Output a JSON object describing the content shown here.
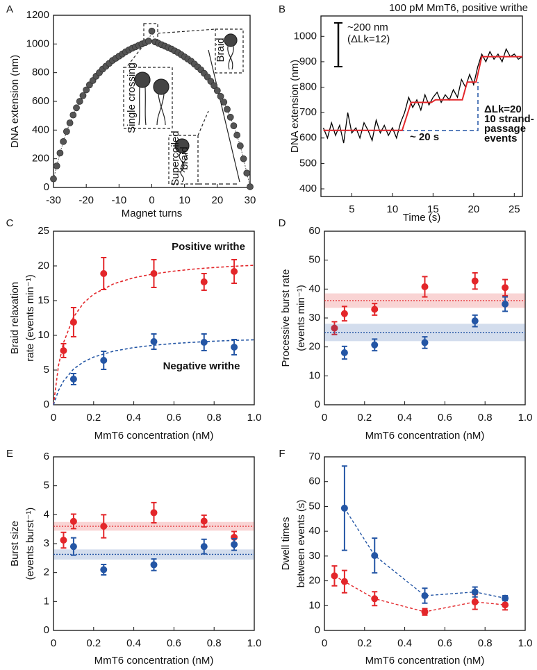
{
  "chart_data": [
    {
      "panel": "A",
      "type": "scatter",
      "color": "#555555",
      "xlabel": "Magnet turns",
      "ylabel": "DNA extension (nm)",
      "x": [
        -30,
        -29,
        -28,
        -27,
        -26,
        -25,
        -24,
        -23,
        -22,
        -21,
        -20,
        -19,
        -18,
        -17,
        -16,
        -15,
        -14,
        -13,
        -12,
        -11,
        -10,
        -9,
        -8,
        -7,
        -6,
        -5,
        -4,
        -3,
        -2,
        -1,
        0,
        1,
        2,
        3,
        4,
        5,
        6,
        7,
        8,
        9,
        10,
        11,
        12,
        13,
        14,
        15,
        16,
        17,
        18,
        19,
        20,
        21,
        22,
        23,
        24,
        25,
        26,
        27,
        28,
        29,
        30
      ],
      "values": [
        60,
        150,
        240,
        320,
        390,
        450,
        505,
        555,
        600,
        640,
        680,
        715,
        745,
        775,
        800,
        825,
        845,
        865,
        885,
        900,
        915,
        930,
        945,
        958,
        970,
        980,
        990,
        1000,
        1010,
        1020,
        1090,
        1015,
        1005,
        995,
        985,
        975,
        965,
        952,
        940,
        925,
        910,
        895,
        880,
        860,
        840,
        820,
        795,
        770,
        740,
        710,
        675,
        635,
        595,
        545,
        490,
        430,
        365,
        290,
        200,
        100,
        5
      ],
      "xlim": [
        -30,
        30
      ],
      "xticks": [
        -30,
        -20,
        -10,
        0,
        10,
        20,
        30
      ],
      "ylim": [
        0,
        1200
      ],
      "yticks": [
        0,
        200,
        400,
        600,
        800,
        1000,
        1200
      ],
      "annotations": [
        "Braid",
        "Single crossing",
        "Supercoiled",
        "braid"
      ]
    },
    {
      "panel": "B",
      "type": "line",
      "xlabel": "Time (s)",
      "ylabel": "DNA extension (nm)",
      "series": [
        {
          "color": "#000000",
          "x": [
            1.5,
            2,
            2.5,
            3,
            3.5,
            4,
            4.5,
            5,
            5.5,
            6,
            6.5,
            7,
            7.5,
            8,
            8.5,
            9,
            9.5,
            10,
            10.5,
            11,
            11.5,
            12,
            12.5,
            13,
            13.5,
            14,
            14.5,
            15,
            15.5,
            16,
            16.5,
            17,
            17.5,
            18,
            18.5,
            19,
            19.5,
            20,
            20.5,
            21,
            21.5,
            22,
            22.5,
            23,
            23.5,
            24,
            24.5,
            25,
            25.5,
            26
          ],
          "values": [
            640,
            600,
            660,
            610,
            650,
            580,
            700,
            620,
            640,
            600,
            660,
            630,
            590,
            670,
            620,
            650,
            610,
            640,
            600,
            660,
            700,
            760,
            720,
            750,
            710,
            770,
            730,
            760,
            780,
            740,
            770,
            750,
            790,
            760,
            830,
            800,
            850,
            810,
            880,
            930,
            900,
            940,
            910,
            930,
            900,
            950,
            920,
            930,
            910,
            920
          ]
        },
        {
          "color": "#e3262a",
          "x": [
            1.5,
            11.2,
            12.3,
            14.8,
            15.3,
            18.6,
            19.2,
            20.3,
            21,
            26
          ],
          "values": [
            630,
            630,
            740,
            740,
            750,
            750,
            820,
            820,
            920,
            920
          ]
        }
      ],
      "xlim": [
        1.2,
        26
      ],
      "xticks": [
        5,
        10,
        15,
        20,
        25
      ],
      "ylim": [
        370,
        1080
      ],
      "yticks": [
        400,
        500,
        600,
        700,
        800,
        900,
        1000
      ],
      "annotations": [
        "100 pM MmT6, positive writhe",
        "~200 nm",
        "(ΔLk=12)",
        "ΔLk=20",
        "10 strand-",
        "passage",
        "events",
        "~ 20 s"
      ]
    },
    {
      "panel": "C",
      "type": "scatter",
      "xlabel": "MmT6 concentration (nM)",
      "ylabel": [
        "Braid relaxation",
        "rate (events min⁻¹)"
      ],
      "series": [
        {
          "name": "Positive writhe",
          "color": "#e3262a",
          "x": [
            0.05,
            0.1,
            0.25,
            0.5,
            0.75,
            0.9
          ],
          "values": [
            7.8,
            11.9,
            18.9,
            18.9,
            17.7,
            19.2
          ],
          "errors": [
            1.0,
            2.1,
            2.3,
            2.0,
            1.2,
            1.7
          ],
          "fit": {
            "x": [
              0,
              0.025,
              0.05,
              0.1,
              0.15,
              0.2,
              0.3,
              0.4,
              0.5,
              0.6,
              0.7,
              0.8,
              0.9,
              1.0
            ],
            "values": [
              0,
              5.66,
              8.96,
              12.65,
              14.66,
              15.93,
              17.43,
              18.3,
              18.86,
              19.25,
              19.55,
              19.77,
              19.95,
              20.09
            ]
          }
        },
        {
          "name": "Negative writhe",
          "color": "#2456a5",
          "x": [
            0.1,
            0.25,
            0.5,
            0.75,
            0.9
          ],
          "values": [
            3.7,
            6.4,
            9.1,
            9.0,
            8.3
          ],
          "errors": [
            0.8,
            1.3,
            1.1,
            1.2,
            1.1
          ],
          "fit": {
            "x": [
              0,
              0.025,
              0.05,
              0.1,
              0.15,
              0.2,
              0.3,
              0.4,
              0.5,
              0.6,
              0.7,
              0.8,
              0.9,
              1.0
            ],
            "values": [
              0,
              2.06,
              3.43,
              5.15,
              6.18,
              6.87,
              7.73,
              8.24,
              8.58,
              8.83,
              9.01,
              9.16,
              9.27,
              9.36
            ]
          }
        }
      ],
      "xlim": [
        0,
        1
      ],
      "xticks": [
        0,
        0.2,
        0.4,
        0.6,
        0.8,
        {
          "value": 1,
          "label": "1.0"
        }
      ],
      "ylim": [
        0,
        25
      ],
      "yticks": [
        0,
        5,
        10,
        15,
        20,
        25
      ]
    },
    {
      "panel": "D",
      "type": "scatter",
      "xlabel": "MmT6 concentration (nM)",
      "ylabel": [
        "Processive burst rate",
        "(events min⁻¹)"
      ],
      "series": [
        {
          "color": "#e3262a",
          "x": [
            0.05,
            0.1,
            0.25,
            0.5,
            0.75,
            0.9
          ],
          "values": [
            26.5,
            31.5,
            33,
            40.8,
            42.8,
            40.5
          ],
          "errors": [
            2.2,
            2.5,
            2,
            3.5,
            2.8,
            2.8
          ],
          "mean": 36,
          "band": [
            33.5,
            38.5
          ]
        },
        {
          "color": "#2456a5",
          "x": [
            0.1,
            0.25,
            0.5,
            0.75,
            0.9
          ],
          "values": [
            18,
            20.7,
            21.5,
            29,
            34.8
          ],
          "errors": [
            2.2,
            2,
            2,
            2,
            2.5
          ],
          "mean": 25,
          "band": [
            22,
            28
          ]
        }
      ],
      "xlim": [
        0,
        1
      ],
      "xticks": [
        0,
        0.2,
        0.4,
        0.6,
        0.8,
        {
          "value": 1,
          "label": "1.0"
        }
      ],
      "ylim": [
        0,
        60
      ],
      "yticks": [
        0,
        10,
        20,
        30,
        40,
        50,
        60
      ]
    },
    {
      "panel": "E",
      "type": "scatter",
      "xlabel": "MmT6 concentration (nM)",
      "ylabel": [
        "Burst size",
        "(events burst⁻¹)"
      ],
      "series": [
        {
          "color": "#e3262a",
          "x": [
            0.05,
            0.1,
            0.25,
            0.5,
            0.75,
            0.9
          ],
          "values": [
            3.12,
            3.77,
            3.6,
            4.07,
            3.78,
            3.22
          ],
          "errors": [
            0.27,
            0.25,
            0.4,
            0.35,
            0.2,
            0.2
          ],
          "mean": 3.6,
          "band": [
            3.45,
            3.75
          ]
        },
        {
          "color": "#2456a5",
          "x": [
            0.1,
            0.25,
            0.5,
            0.75,
            0.9
          ],
          "values": [
            2.9,
            2.1,
            2.27,
            2.9,
            2.97
          ],
          "errors": [
            0.3,
            0.18,
            0.2,
            0.25,
            0.2
          ],
          "mean": 2.63,
          "band": [
            2.45,
            2.8
          ]
        }
      ],
      "xlim": [
        0,
        1
      ],
      "xticks": [
        0,
        0.2,
        0.4,
        0.6,
        0.8,
        {
          "value": 1,
          "label": "1.0"
        }
      ],
      "ylim": [
        0,
        6
      ],
      "yticks": [
        0,
        1,
        2,
        3,
        4,
        5,
        6
      ]
    },
    {
      "panel": "F",
      "type": "scatter",
      "connect": true,
      "xlabel": "MmT6 concentration (nM)",
      "ylabel": [
        "Dwell times",
        "between events (s)"
      ],
      "series": [
        {
          "color": "#e3262a",
          "x": [
            0.05,
            0.1,
            0.25,
            0.5,
            0.75,
            0.9
          ],
          "values": [
            22,
            19.7,
            12.8,
            7.5,
            11.5,
            10.3
          ],
          "errors": [
            4,
            4.5,
            2.8,
            1.3,
            3,
            2
          ]
        },
        {
          "color": "#2456a5",
          "x": [
            0.1,
            0.25,
            0.5,
            0.75,
            0.9
          ],
          "values": [
            49.3,
            30.2,
            14,
            15.5,
            13
          ],
          "errors": [
            17,
            7,
            3,
            2,
            1
          ]
        }
      ],
      "xlim": [
        0,
        1
      ],
      "xticks": [
        0,
        0.2,
        0.4,
        0.6,
        0.8,
        {
          "value": 1,
          "label": "1.0"
        }
      ],
      "ylim": [
        0,
        70
      ],
      "yticks": [
        0,
        10,
        20,
        30,
        40,
        50,
        60,
        70
      ]
    }
  ]
}
